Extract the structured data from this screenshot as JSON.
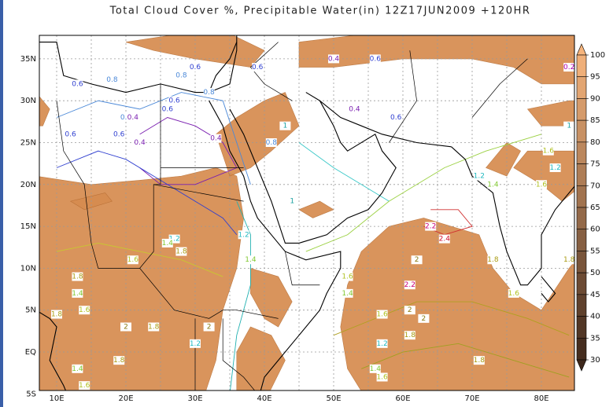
{
  "title": "Total Cloud Cover %, Precipitable Water(in) 12Z17JUN2009 +120HR",
  "lat_labels": [
    "35N",
    "30N",
    "25N",
    "20N",
    "15N",
    "10N",
    "5N",
    "EQ",
    "5S"
  ],
  "lon_labels": [
    "10E",
    "20E",
    "30E",
    "40E",
    "50E",
    "60E",
    "70E",
    "80E"
  ],
  "colorbar": {
    "ticks": [
      100,
      95,
      90,
      85,
      80,
      75,
      70,
      65,
      60,
      55,
      50,
      45,
      40,
      35,
      30
    ]
  },
  "contour_labels": [
    "0.6",
    "0.8",
    "0.6",
    "0.8",
    "0.6",
    "0.4",
    "0.4",
    "0.6",
    "0.6",
    "0.6",
    "0.8",
    "0.8",
    "0.4",
    "0.6",
    "0.4",
    "0.6",
    "0.4",
    "0.6",
    "0.8",
    "1",
    "1.2",
    "1.4",
    "1.2",
    "1.4",
    "1.6",
    "1.8",
    "1.8",
    "1.4",
    "1.6",
    "1.8",
    "2",
    "1.8",
    "2",
    "1.2",
    "1.4",
    "1.6",
    "1.8",
    "2.2",
    "2.4",
    "2",
    "2.2",
    "2",
    "1.8",
    "1.6",
    "1.4",
    "1.8",
    "1.6",
    "1.2",
    "1.8",
    "1.6",
    "1.4",
    "1.2",
    "1.6",
    "1.8",
    "2",
    "1.2",
    "1.4",
    "1.6",
    "2",
    "1",
    "0.2",
    "1.6",
    "1"
  ]
}
